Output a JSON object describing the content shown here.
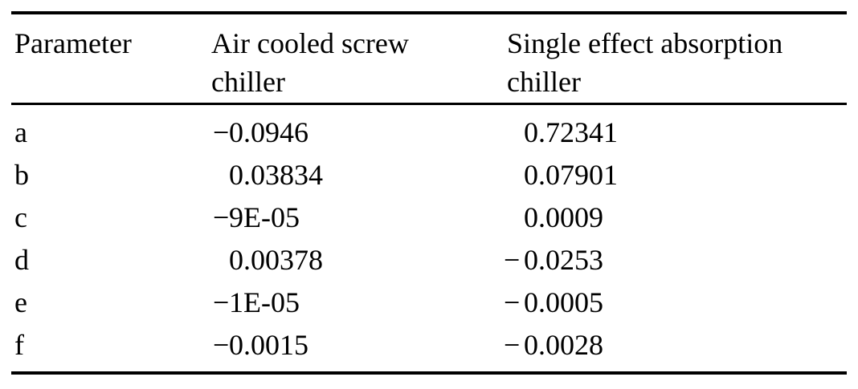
{
  "table": {
    "columns": [
      {
        "label": "Parameter"
      },
      {
        "label": "Air cooled screw\nchiller"
      },
      {
        "label": "Single effect absorption\nchiller"
      }
    ],
    "rows": [
      {
        "parameter": "a",
        "air_sign": "−",
        "air_value": "0.0946",
        "single_sign": "",
        "single_value": "0.72341"
      },
      {
        "parameter": "b",
        "air_sign": "",
        "air_value": "0.03834",
        "single_sign": "",
        "single_value": "0.07901"
      },
      {
        "parameter": "c",
        "air_sign": "−",
        "air_value": "9E-05",
        "single_sign": "",
        "single_value": "0.0009"
      },
      {
        "parameter": "d",
        "air_sign": "",
        "air_value": "0.00378",
        "single_sign": "−",
        "single_value": "0.0253"
      },
      {
        "parameter": "e",
        "air_sign": "−",
        "air_value": "1E-05",
        "single_sign": "−",
        "single_value": "0.0005"
      },
      {
        "parameter": "f",
        "air_sign": "−",
        "air_value": "0.0015",
        "single_sign": "−",
        "single_value": "0.0028"
      }
    ],
    "colors": {
      "text": "#000000",
      "rule": "#000000",
      "background": "#ffffff"
    }
  }
}
